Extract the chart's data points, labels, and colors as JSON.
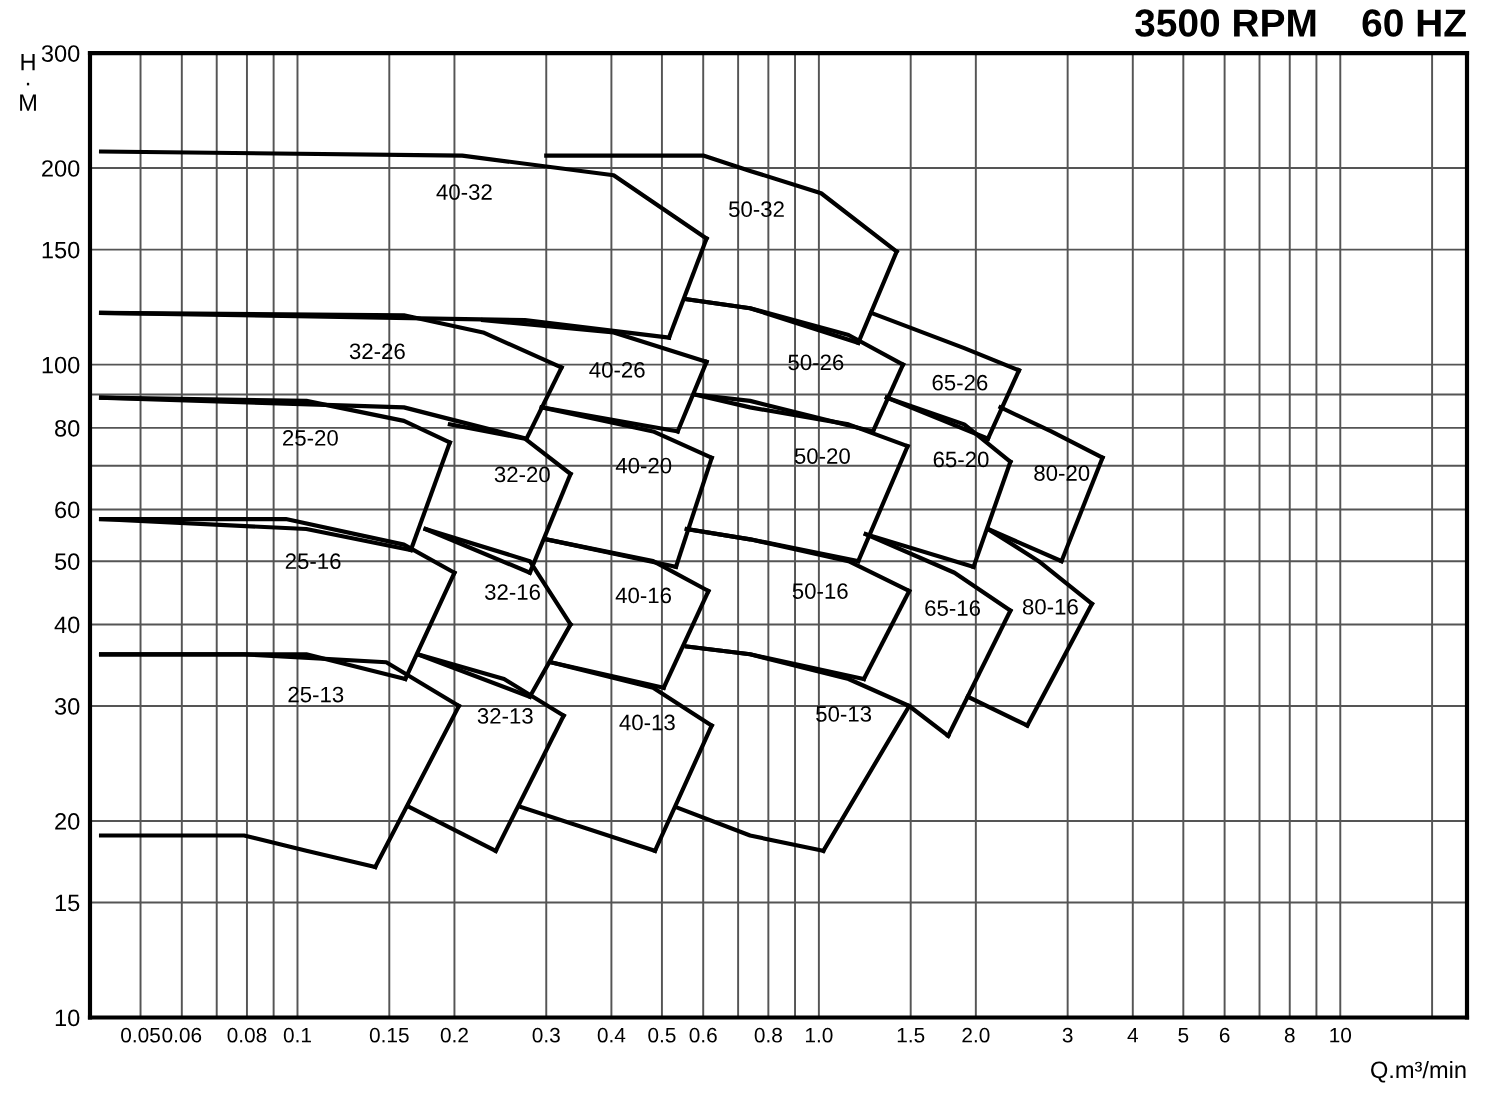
{
  "chart_data": {
    "type": "line",
    "title": "3500 RPM    60 HZ",
    "xlabel": "Q.m³/min",
    "ylabel": "H\n·\nM",
    "log": "xy",
    "grid": true,
    "legend": false,
    "marker": "none",
    "line_style": "solid",
    "xlim": [
      0.04,
      17.5
    ],
    "ylim": [
      10,
      300
    ],
    "xticks": [
      0.05,
      0.06,
      {
        "value": 0.07,
        "label": null
      },
      0.08,
      {
        "value": 0.09,
        "label": null
      },
      0.1,
      0.15,
      0.2,
      0.3,
      0.4,
      0.5,
      0.6,
      {
        "value": 0.7,
        "label": null
      },
      0.8,
      {
        "value": 0.9,
        "label": null
      },
      {
        "value": 1,
        "label": "1.0"
      },
      1.5,
      {
        "value": 2,
        "label": "2.0"
      },
      3,
      4,
      5,
      6,
      {
        "value": 7,
        "label": null
      },
      8,
      {
        "value": 9,
        "label": null
      },
      10,
      {
        "value": 15,
        "label": null
      }
    ],
    "yticks": [
      10,
      15,
      20,
      30,
      40,
      50,
      60,
      {
        "value": 70,
        "label": null
      },
      80,
      {
        "value": 90,
        "label": null
      },
      100,
      150,
      200,
      300
    ],
    "series": [
      {
        "name": "40-32",
        "color": "#000000",
        "x": [
          0.042,
          0.207,
          0.404,
          0.609
        ],
        "values": [
          212,
          209,
          195,
          156
        ]
      },
      {
        "color": "#000000",
        "x": [
          0.516,
          0.609
        ],
        "values": [
          110,
          156
        ]
      },
      {
        "color": "#000000",
        "x": [
          0.042,
          0.273,
          0.516
        ],
        "values": [
          120,
          117,
          110
        ]
      },
      {
        "name": "50-32",
        "color": "#000000",
        "x": [
          0.3,
          0.6,
          0.738,
          1.01,
          1.41
        ],
        "values": [
          209,
          209,
          198,
          183,
          149
        ]
      },
      {
        "color": "#000000",
        "x": [
          1.19,
          1.41
        ],
        "values": [
          108,
          149
        ]
      },
      {
        "color": "#000000",
        "x": [
          0.554,
          0.738,
          1.19
        ],
        "values": [
          126,
          122,
          108
        ]
      },
      {
        "name": "32-26",
        "color": "#000000",
        "x": [
          0.042,
          0.16,
          0.227,
          0.321
        ],
        "values": [
          120,
          119,
          112,
          99
        ]
      },
      {
        "color": "#000000",
        "x": [
          0.275,
          0.321
        ],
        "values": [
          77,
          99
        ]
      },
      {
        "color": "#000000",
        "x": [
          0.042,
          0.16,
          0.275
        ],
        "values": [
          89,
          86,
          77
        ]
      },
      {
        "name": "40-26",
        "color": "#000000",
        "x": [
          0.227,
          0.404,
          0.609
        ],
        "values": [
          117,
          112,
          101
        ]
      },
      {
        "color": "#000000",
        "x": [
          0.536,
          0.609
        ],
        "values": [
          79,
          101
        ]
      },
      {
        "color": "#000000",
        "x": [
          0.294,
          0.536
        ],
        "values": [
          86,
          79
        ]
      },
      {
        "name": "50-26",
        "color": "#000000",
        "x": [
          0.554,
          0.738,
          1.14,
          1.45
        ],
        "values": [
          126,
          122,
          111,
          100
        ]
      },
      {
        "color": "#000000",
        "x": [
          1.27,
          1.45
        ],
        "values": [
          79,
          100
        ]
      },
      {
        "color": "#000000",
        "x": [
          0.577,
          0.738,
          1.27
        ],
        "values": [
          90,
          88,
          79
        ]
      },
      {
        "name": "65-26",
        "color": "#000000",
        "x": [
          1.26,
          1.9,
          2.42
        ],
        "values": [
          120,
          106,
          98
        ]
      },
      {
        "color": "#000000",
        "x": [
          2.11,
          2.42
        ],
        "values": [
          77,
          98
        ]
      },
      {
        "color": "#000000",
        "x": [
          1.35,
          2.11
        ],
        "values": [
          89,
          77
        ]
      },
      {
        "name": "25-20",
        "color": "#000000",
        "x": [
          0.042,
          0.104,
          0.16,
          0.196
        ],
        "values": [
          89,
          88,
          82,
          76
        ]
      },
      {
        "color": "#000000",
        "x": [
          0.165,
          0.196
        ],
        "values": [
          52,
          76
        ]
      },
      {
        "color": "#000000",
        "x": [
          0.042,
          0.104,
          0.165
        ],
        "values": [
          58,
          56,
          52
        ]
      },
      {
        "name": "32-20",
        "color": "#000000",
        "x": [
          0.196,
          0.273,
          0.334
        ],
        "values": [
          81,
          77,
          68
        ]
      },
      {
        "color": "#000000",
        "x": [
          0.279,
          0.334
        ],
        "values": [
          48,
          68
        ]
      },
      {
        "color": "#000000",
        "x": [
          0.176,
          0.279
        ],
        "values": [
          56,
          48
        ]
      },
      {
        "name": "40-20",
        "color": "#000000",
        "x": [
          0.294,
          0.481,
          0.623
        ],
        "values": [
          86,
          79,
          72
        ]
      },
      {
        "color": "#000000",
        "x": [
          0.532,
          0.623
        ],
        "values": [
          49,
          72
        ]
      },
      {
        "color": "#000000",
        "x": [
          0.3,
          0.532
        ],
        "values": [
          54,
          49
        ]
      },
      {
        "name": "50-20",
        "color": "#000000",
        "x": [
          0.577,
          0.738,
          1.14,
          1.48
        ],
        "values": [
          90,
          86,
          81,
          75
        ]
      },
      {
        "color": "#000000",
        "x": [
          1.19,
          1.48
        ],
        "values": [
          50,
          75
        ]
      },
      {
        "color": "#000000",
        "x": [
          0.558,
          0.738,
          1.19
        ],
        "values": [
          56,
          54,
          50
        ]
      },
      {
        "name": "65-20",
        "color": "#000000",
        "x": [
          1.35,
          1.9,
          2.33
        ],
        "values": [
          89,
          81,
          71
        ]
      },
      {
        "color": "#000000",
        "x": [
          1.98,
          2.33
        ],
        "values": [
          49,
          71
        ]
      },
      {
        "color": "#000000",
        "x": [
          1.23,
          1.98
        ],
        "values": [
          55,
          49
        ]
      },
      {
        "name": "80-20",
        "color": "#000000",
        "x": [
          2.23,
          2.79,
          3.5
        ],
        "values": [
          86,
          79,
          72
        ]
      },
      {
        "color": "#000000",
        "x": [
          2.92,
          3.5
        ],
        "values": [
          50,
          72
        ]
      },
      {
        "color": "#000000",
        "x": [
          2.11,
          2.92
        ],
        "values": [
          56,
          50
        ]
      },
      {
        "name": "25-16",
        "color": "#000000",
        "x": [
          0.042,
          0.095,
          0.16,
          0.2
        ],
        "values": [
          58,
          58,
          53,
          48
        ]
      },
      {
        "color": "#000000",
        "x": [
          0.161,
          0.2
        ],
        "values": [
          33,
          48
        ]
      },
      {
        "color": "#000000",
        "x": [
          0.042,
          0.104,
          0.161
        ],
        "values": [
          36,
          36,
          33
        ]
      },
      {
        "name": "32-16",
        "color": "#000000",
        "x": [
          0.176,
          0.279,
          0.334
        ],
        "values": [
          56,
          50,
          40
        ]
      },
      {
        "color": "#000000",
        "x": [
          0.279,
          0.334
        ],
        "values": [
          31,
          40
        ]
      },
      {
        "color": "#000000",
        "x": [
          0.17,
          0.279
        ],
        "values": [
          36,
          31
        ]
      },
      {
        "name": "40-16",
        "color": "#000000",
        "x": [
          0.3,
          0.481,
          0.614
        ],
        "values": [
          54,
          50,
          45
        ]
      },
      {
        "color": "#000000",
        "x": [
          0.504,
          0.614
        ],
        "values": [
          32,
          45
        ]
      },
      {
        "color": "#000000",
        "x": [
          0.306,
          0.504
        ],
        "values": [
          35,
          32
        ]
      },
      {
        "name": "50-16",
        "color": "#000000",
        "x": [
          0.558,
          0.738,
          1.14,
          1.49
        ],
        "values": [
          56,
          54,
          50,
          45
        ]
      },
      {
        "color": "#000000",
        "x": [
          1.22,
          1.49
        ],
        "values": [
          33,
          45
        ]
      },
      {
        "color": "#000000",
        "x": [
          0.558,
          0.738,
          1.22
        ],
        "values": [
          37,
          36,
          33
        ]
      },
      {
        "name": "65-16",
        "color": "#000000",
        "x": [
          1.23,
          1.82,
          2.33
        ],
        "values": [
          55,
          48,
          42
        ]
      },
      {
        "color": "#000000",
        "x": [
          1.77,
          2.33
        ],
        "values": [
          27,
          42
        ]
      },
      {
        "name": "80-16",
        "color": "#000000",
        "x": [
          2.11,
          2.64,
          3.34
        ],
        "values": [
          56,
          50,
          43
        ]
      },
      {
        "color": "#000000",
        "x": [
          2.51,
          3.34
        ],
        "values": [
          28,
          43
        ]
      },
      {
        "color": "#000000",
        "x": [
          1.93,
          2.51
        ],
        "values": [
          31,
          28
        ]
      },
      {
        "name": "25-13",
        "color": "#000000",
        "x": [
          0.042,
          0.079,
          0.148,
          0.204
        ],
        "values": [
          36,
          36,
          35,
          30
        ]
      },
      {
        "color": "#000000",
        "x": [
          0.141,
          0.204
        ],
        "values": [
          17,
          30
        ]
      },
      {
        "color": "#000000",
        "x": [
          0.042,
          0.079,
          0.104,
          0.141
        ],
        "values": [
          19,
          19,
          18,
          17
        ]
      },
      {
        "name": "32-13",
        "color": "#000000",
        "x": [
          0.17,
          0.249,
          0.324
        ],
        "values": [
          36,
          33,
          29
        ]
      },
      {
        "color": "#000000",
        "x": [
          0.24,
          0.324
        ],
        "values": [
          18,
          29
        ]
      },
      {
        "color": "#000000",
        "x": [
          0.164,
          0.24
        ],
        "values": [
          21,
          18
        ]
      },
      {
        "name": "40-13",
        "color": "#000000",
        "x": [
          0.306,
          0.481,
          0.623
        ],
        "values": [
          35,
          32,
          28
        ]
      },
      {
        "color": "#000000",
        "x": [
          0.485,
          0.623
        ],
        "values": [
          18,
          28
        ]
      },
      {
        "color": "#000000",
        "x": [
          0.269,
          0.485
        ],
        "values": [
          21,
          18
        ]
      },
      {
        "name": "50-13",
        "color": "#000000",
        "x": [
          0.558,
          0.738,
          1.14,
          1.49,
          1.77
        ],
        "values": [
          37,
          36,
          33,
          30,
          27
        ]
      },
      {
        "color": "#000000",
        "x": [
          1.02,
          1.49
        ],
        "values": [
          18,
          30
        ]
      },
      {
        "color": "#000000",
        "x": [
          0.532,
          0.738,
          1.02
        ],
        "values": [
          21,
          19,
          18
        ]
      }
    ]
  }
}
